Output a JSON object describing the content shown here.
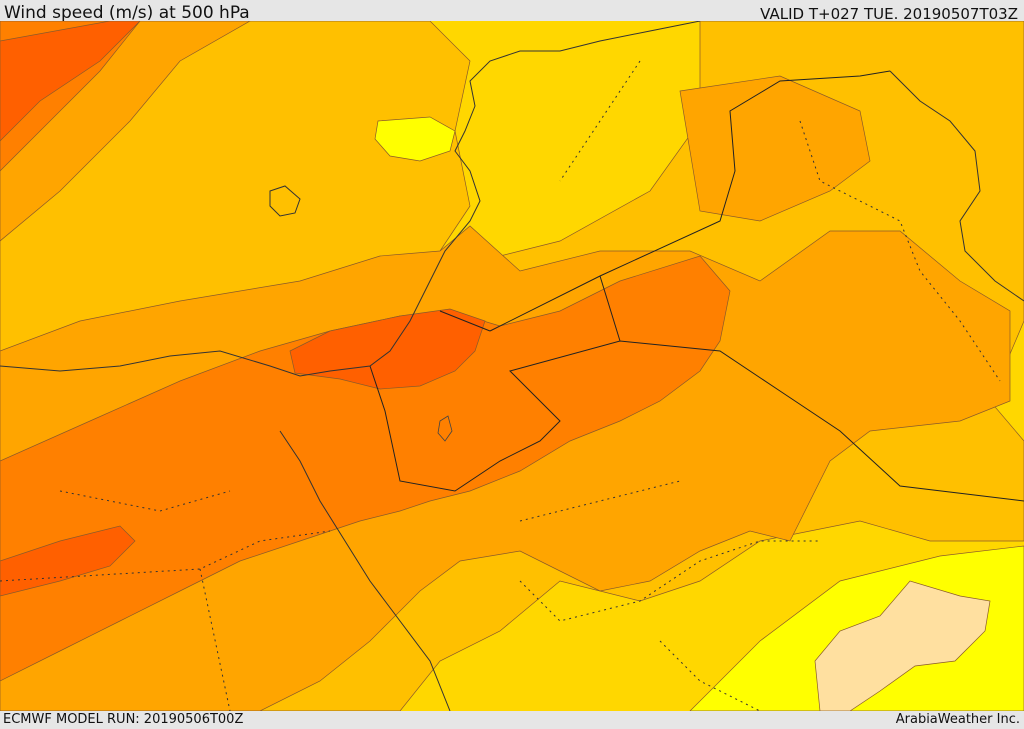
{
  "header": {
    "title": "Wind speed (m/s) at 500 hPa",
    "valid": "VALID T+027 TUE. 20190507T03Z"
  },
  "footer": {
    "model_run": "ECMWF MODEL RUN: 20190506T00Z",
    "provider": "ArabiaWeather Inc."
  },
  "map": {
    "colors": {
      "yellow_bright": "#ffff00",
      "yellow_gold": "#ffd700",
      "amber": "#ffc000",
      "orange_light": "#ffa500",
      "orange": "#ff8000",
      "orange_dark": "#ff6000",
      "cream": "#ffe0a0"
    }
  }
}
